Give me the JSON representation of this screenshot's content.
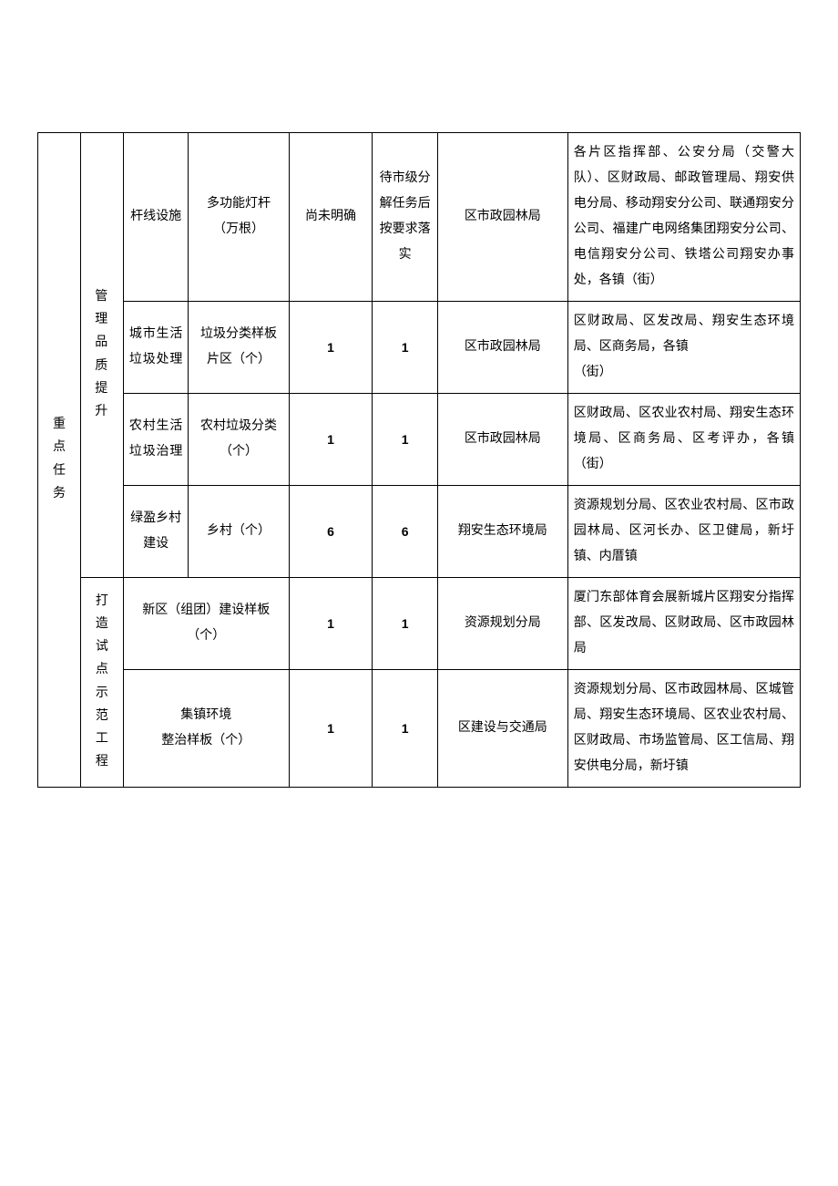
{
  "rowgroup1_label": "重点任务",
  "rowgroup_a_label": "管理品质提升",
  "rowgroup_b_label": "打造试点示范工程",
  "rows": [
    {
      "c3": "杆线设施",
      "c4": "多功能灯杆（万根）",
      "c5": "尚未明确",
      "c6": "待市级分解任务后按要求落实",
      "c7": "区市政园林局",
      "c8": "各片区指挥部、公安分局（交警大队）、区财政局、邮政管理局、翔安供电分局、移动翔安分公司、联通翔安分公司、福建广电网络集团翔安分公司、电信翔安分公司、铁塔公司翔安办事处，各镇（街）"
    },
    {
      "c3": "城市生活垃圾处理",
      "c4": "垃圾分类样板片区（个）",
      "c5": "1",
      "c6": "1",
      "c7": "区市政园林局",
      "c8": "区财政局、区发改局、翔安生态环境局、区商务局，各镇\n（街）"
    },
    {
      "c3": "农村生活垃圾治理",
      "c4": "农村垃圾分类（个）",
      "c5": "1",
      "c6": "1",
      "c7": "区市政园林局",
      "c8": "区财政局、区农业农村局、翔安生态环境局、区商务局、区考评办，各镇（街）"
    },
    {
      "c3": "绿盈乡村建设",
      "c4": "乡村（个）",
      "c5": "6",
      "c6": "6",
      "c7": "翔安生态环境局",
      "c8": "资源规划分局、区农业农村局、区市政园林局、区河长办、区卫健局，新圩镇、内厝镇"
    },
    {
      "c34": "新区（组团）建设样板（个）",
      "c5": "1",
      "c6": "1",
      "c7": "资源规划分局",
      "c8": "厦门东部体育会展新城片区翔安分指挥部、区发改局、区财政局、区市政园林局"
    },
    {
      "c34": "集镇环境\n整治样板（个）",
      "c5": "1",
      "c6": "1",
      "c7": "区建设与交通局",
      "c8": "资源规划分局、区市政园林局、区城管局、翔安生态环境局、区农业农村局、区财政局、市场监管局、区工信局、翔安供电分局，新圩镇"
    }
  ]
}
